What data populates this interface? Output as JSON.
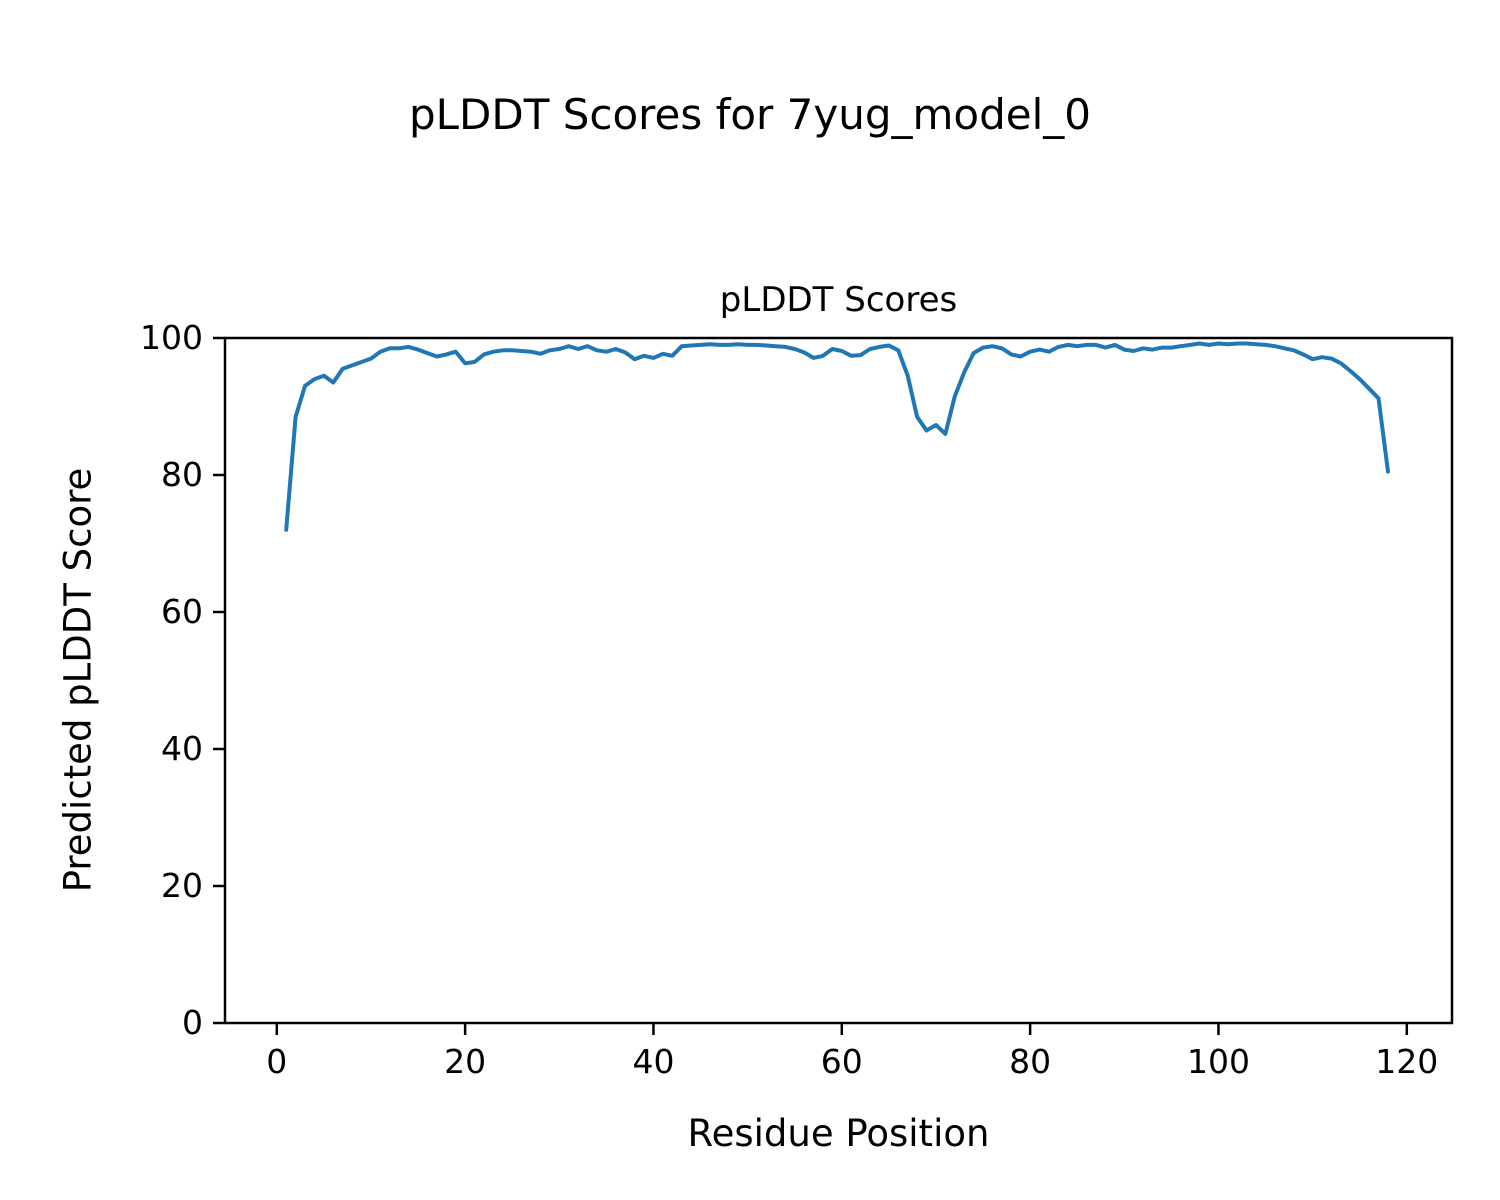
{
  "figure": {
    "suptitle": "pLDDT Scores for 7yug_model_0"
  },
  "chart_data": {
    "type": "line",
    "title": "pLDDT Scores",
    "xlabel": "Residue Position",
    "ylabel": "Predicted pLDDT Score",
    "xlim": [
      -5.5,
      124.8
    ],
    "ylim": [
      0,
      100
    ],
    "xticks": [
      0,
      20,
      40,
      60,
      80,
      100,
      120
    ],
    "yticks": [
      0,
      20,
      40,
      60,
      80,
      100
    ],
    "grid": false,
    "legend_position": "none",
    "line_color": "#1f77b4",
    "series": [
      {
        "name": "pLDDT",
        "x": [
          1,
          2,
          3,
          4,
          5,
          6,
          7,
          8,
          9,
          10,
          11,
          12,
          13,
          14,
          15,
          16,
          17,
          18,
          19,
          20,
          21,
          22,
          23,
          24,
          25,
          26,
          27,
          28,
          29,
          30,
          31,
          32,
          33,
          34,
          35,
          36,
          37,
          38,
          39,
          40,
          41,
          42,
          43,
          44,
          45,
          46,
          47,
          48,
          49,
          50,
          51,
          52,
          53,
          54,
          55,
          56,
          57,
          58,
          59,
          60,
          61,
          62,
          63,
          64,
          65,
          66,
          67,
          68,
          69,
          70,
          71,
          72,
          73,
          74,
          75,
          76,
          77,
          78,
          79,
          80,
          81,
          82,
          83,
          84,
          85,
          86,
          87,
          88,
          89,
          90,
          91,
          92,
          93,
          94,
          95,
          96,
          97,
          98,
          99,
          100,
          101,
          102,
          103,
          104,
          105,
          106,
          107,
          108,
          109,
          110,
          111,
          112,
          113,
          114,
          115,
          116,
          117,
          118
        ],
        "y": [
          72.0,
          88.5,
          93.0,
          94.0,
          94.5,
          93.5,
          95.5,
          96.0,
          96.5,
          97.0,
          98.0,
          98.5,
          98.5,
          98.7,
          98.3,
          97.8,
          97.3,
          97.6,
          98.0,
          96.3,
          96.5,
          97.6,
          98.0,
          98.2,
          98.2,
          98.1,
          98.0,
          97.7,
          98.2,
          98.4,
          98.8,
          98.4,
          98.8,
          98.2,
          98.0,
          98.4,
          97.9,
          96.9,
          97.4,
          97.1,
          97.7,
          97.4,
          98.8,
          98.9,
          99.0,
          99.1,
          99.0,
          99.0,
          99.1,
          99.0,
          99.0,
          98.9,
          98.8,
          98.7,
          98.4,
          97.9,
          97.1,
          97.4,
          98.4,
          98.1,
          97.4,
          97.5,
          98.4,
          98.7,
          98.9,
          98.2,
          94.5,
          88.5,
          86.5,
          87.3,
          86.0,
          91.5,
          95.0,
          97.8,
          98.6,
          98.8,
          98.5,
          97.6,
          97.3,
          98.0,
          98.3,
          98.0,
          98.7,
          99.0,
          98.8,
          99.0,
          99.0,
          98.6,
          99.0,
          98.3,
          98.1,
          98.5,
          98.3,
          98.6,
          98.6,
          98.8,
          99.0,
          99.2,
          99.0,
          99.2,
          99.1,
          99.2,
          99.2,
          99.1,
          99.0,
          98.8,
          98.5,
          98.2,
          97.6,
          96.9,
          97.2,
          97.0,
          96.3,
          95.2,
          94.0,
          92.6,
          91.2,
          80.5
        ]
      }
    ]
  }
}
